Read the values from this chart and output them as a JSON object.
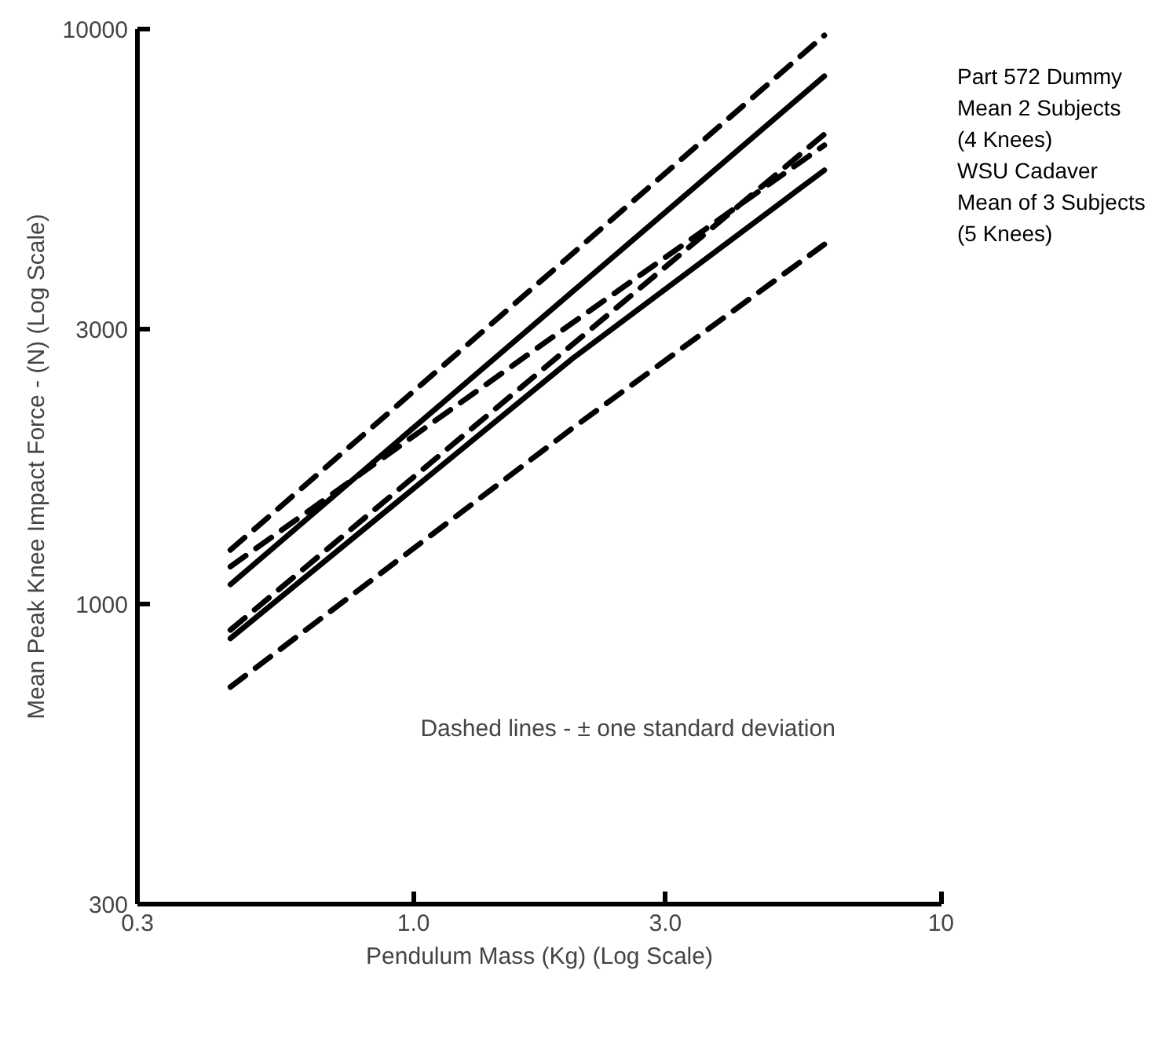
{
  "chart_data": {
    "type": "line",
    "xlabel": "Pendulum Mass (Kg) (Log Scale)",
    "ylabel": "Mean Peak Knee Impact Force - (N) (Log Scale)",
    "log": "xy",
    "grid": false,
    "marker": "none",
    "xlim": [
      0.3,
      10
    ],
    "ylim": [
      300,
      10000
    ],
    "xticks": [
      {
        "value": 0.3,
        "label": "0.3"
      },
      {
        "value": 1,
        "label": "1.0"
      },
      {
        "value": 3,
        "label": "3.0"
      },
      10
    ],
    "yticks": [
      300,
      1000,
      3000,
      10000
    ],
    "series": [
      {
        "color": "#000000",
        "line_style": "dashed",
        "x": [
          0.45,
          6.0
        ],
        "values": [
          1240,
          9750
        ]
      },
      {
        "name": "Part 572 Dummy\nMean 2 Subjects\n(4 Knees)",
        "color": "#000000",
        "line_style": "solid",
        "x": [
          0.45,
          6.0
        ],
        "values": [
          1080,
          8280
        ]
      },
      {
        "color": "#000000",
        "line_style": "dashed",
        "x": [
          0.45,
          6.0
        ],
        "values": [
          900,
          6560
        ]
      },
      {
        "color": "#000000",
        "line_style": "dashed",
        "x": [
          0.45,
          2.0,
          6.0
        ],
        "values": [
          1160,
          3080,
          6280
        ]
      },
      {
        "name": "WSU Cadaver\nMean of 3 Subjects\n(5 Knees)",
        "color": "#000000",
        "line_style": "solid",
        "x": [
          0.45,
          2.0,
          6.0
        ],
        "values": [
          870,
          2670,
          5680
        ]
      },
      {
        "color": "#000000",
        "line_style": "dashed",
        "x": [
          0.45,
          2.0,
          6.0
        ],
        "values": [
          716,
          2020,
          4220
        ]
      }
    ],
    "annotations": [
      "Dashed lines - ± one standard deviation"
    ]
  }
}
